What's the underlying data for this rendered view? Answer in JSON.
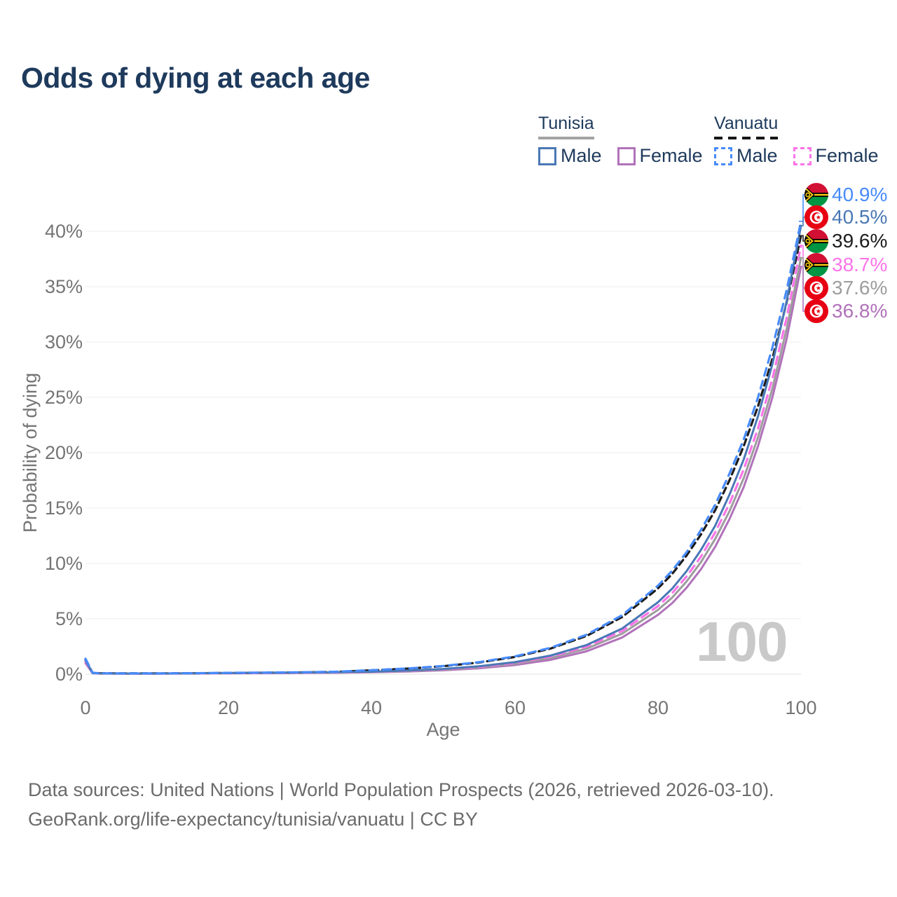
{
  "title": "Odds of dying at each age",
  "legend": {
    "groups": [
      {
        "label": "Tunisia",
        "line_style": "solid",
        "underline_color": "#a3a3a3",
        "items": [
          {
            "label": "Male",
            "color": "#4a78b5",
            "dash": false
          },
          {
            "label": "Female",
            "color": "#b172ba",
            "dash": false
          }
        ]
      },
      {
        "label": "Vanuatu",
        "line_style": "dashed",
        "underline_color": "#161616",
        "items": [
          {
            "label": "Male",
            "color": "#478bfa",
            "dash": true
          },
          {
            "label": "Female",
            "color": "#fb74e8",
            "dash": true
          }
        ]
      }
    ]
  },
  "watermark": "100",
  "footer": {
    "line1": "Data sources: United Nations | World Population Prospects (2026, retrieved 2026-03-10).",
    "line2": "GeoRank.org/life-expectancy/tunisia/vanuatu | CC BY"
  },
  "chart_data": {
    "type": "line",
    "title": "Odds of dying at each age",
    "xlabel": "Age",
    "ylabel": "Probability of dying",
    "xlim": [
      0,
      100
    ],
    "ylim": [
      0,
      43
    ],
    "x_ticks": [
      0,
      20,
      40,
      60,
      80,
      100
    ],
    "y_ticks": [
      0,
      5,
      10,
      15,
      20,
      25,
      30,
      35,
      40
    ],
    "grid": "horizontal",
    "legend_position": "top-right",
    "x": [
      0,
      1,
      2,
      5,
      10,
      15,
      20,
      25,
      30,
      35,
      40,
      45,
      50,
      55,
      60,
      65,
      70,
      75,
      80,
      82,
      84,
      86,
      88,
      90,
      92,
      94,
      96,
      98,
      100
    ],
    "series": [
      {
        "id": "vanuatu-male",
        "name": "Vanuatu Male",
        "country": "Vanuatu",
        "sex": "Male",
        "color": "#478bfa",
        "label_color": "#478bfa",
        "dash": [
          11,
          8
        ],
        "width": 3.2,
        "flag": "vanuatu",
        "end_label": "40.9%",
        "values": [
          1.4,
          0.12,
          0.08,
          0.07,
          0.07,
          0.09,
          0.12,
          0.14,
          0.17,
          0.22,
          0.36,
          0.51,
          0.74,
          1.08,
          1.6,
          2.38,
          3.55,
          5.32,
          7.99,
          9.35,
          11.0,
          13.0,
          15.3,
          18.1,
          21.2,
          25.0,
          29.5,
          34.7,
          40.9
        ]
      },
      {
        "id": "tunisia-male",
        "name": "Tunisia Male",
        "country": "Tunisia",
        "sex": "Male",
        "color": "#4a78b5",
        "label_color": "#4a78b5",
        "dash": null,
        "width": 3,
        "flag": "tunisia",
        "end_label": "40.5%",
        "values": [
          1.25,
          0.1,
          0.07,
          0.06,
          0.06,
          0.08,
          0.11,
          0.13,
          0.15,
          0.18,
          0.22,
          0.32,
          0.47,
          0.71,
          1.08,
          1.68,
          2.62,
          4.12,
          6.49,
          7.73,
          9.29,
          11.2,
          13.4,
          16.2,
          19.4,
          23.3,
          28.0,
          33.7,
          40.5
        ]
      },
      {
        "id": "vanuatu-both",
        "name": "Vanuatu",
        "country": "Vanuatu",
        "sex": "Both",
        "color": "#1c1c1c",
        "label_color": "#1c1c1c",
        "dash": [
          9,
          6
        ],
        "width": 3.2,
        "flag": "vanuatu",
        "end_label": "39.6%",
        "values": [
          1.3,
          0.11,
          0.08,
          0.07,
          0.07,
          0.08,
          0.11,
          0.13,
          0.16,
          0.2,
          0.35,
          0.5,
          0.72,
          1.05,
          1.55,
          2.31,
          3.44,
          5.16,
          7.74,
          9.05,
          10.7,
          12.6,
          14.8,
          17.5,
          20.6,
          24.2,
          28.5,
          33.6,
          39.6
        ]
      },
      {
        "id": "vanuatu-female",
        "name": "Vanuatu Female",
        "country": "Vanuatu",
        "sex": "Female",
        "color": "#fb74e8",
        "label_color": "#fb74e8",
        "dash": [
          11,
          8
        ],
        "width": 3.2,
        "flag": "vanuatu",
        "end_label": "38.7%",
        "values": [
          1.15,
          0.1,
          0.07,
          0.06,
          0.06,
          0.07,
          0.09,
          0.11,
          0.13,
          0.16,
          0.21,
          0.3,
          0.44,
          0.66,
          1.02,
          1.58,
          2.48,
          3.89,
          6.14,
          7.32,
          8.81,
          10.6,
          12.8,
          15.4,
          18.5,
          22.2,
          26.7,
          32.2,
          38.7
        ]
      },
      {
        "id": "tunisia-both",
        "name": "Tunisia",
        "country": "Tunisia",
        "sex": "Both",
        "color": "#9d9d9d",
        "label_color": "#9d9d9d",
        "dash": null,
        "width": 3,
        "flag": "tunisia",
        "end_label": "37.6%",
        "values": [
          1.15,
          0.09,
          0.06,
          0.05,
          0.05,
          0.07,
          0.09,
          0.11,
          0.13,
          0.15,
          0.19,
          0.27,
          0.4,
          0.61,
          0.94,
          1.46,
          2.3,
          3.65,
          5.8,
          6.92,
          8.36,
          10.1,
          12.2,
          14.7,
          17.7,
          21.4,
          25.8,
          31.2,
          37.6
        ]
      },
      {
        "id": "tunisia-female",
        "name": "Tunisia Female",
        "country": "Tunisia",
        "sex": "Female",
        "color": "#b172ba",
        "label_color": "#b172ba",
        "dash": null,
        "width": 3,
        "flag": "tunisia",
        "end_label": "36.8%",
        "values": [
          1.0,
          0.08,
          0.06,
          0.05,
          0.05,
          0.06,
          0.08,
          0.09,
          0.11,
          0.13,
          0.17,
          0.24,
          0.35,
          0.53,
          0.82,
          1.29,
          2.06,
          3.31,
          5.35,
          6.42,
          7.8,
          9.46,
          11.5,
          14.0,
          16.9,
          20.6,
          25.0,
          30.3,
          36.8
        ]
      }
    ]
  }
}
